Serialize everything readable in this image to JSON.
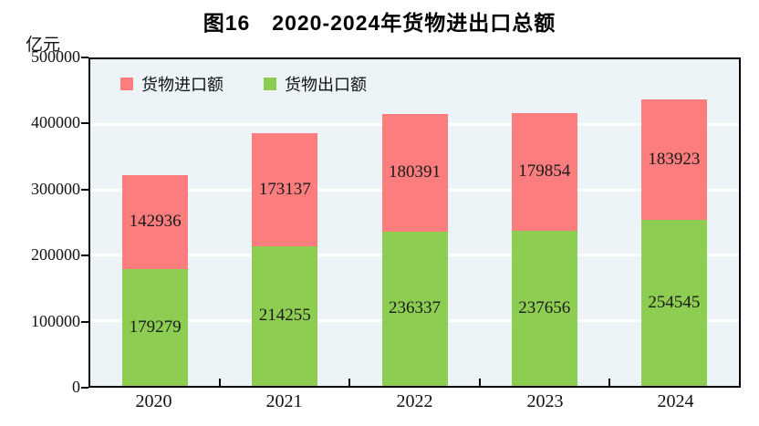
{
  "chart_data": {
    "type": "bar",
    "stacked": true,
    "title": "图16　2020-2024年货物进出口总额",
    "ylabel": "亿元",
    "categories": [
      "2020",
      "2021",
      "2022",
      "2023",
      "2024"
    ],
    "series": [
      {
        "name": "货物进口额",
        "color": "#FB7D7D",
        "position": "top",
        "values": [
          142936,
          173137,
          180391,
          179854,
          183923
        ]
      },
      {
        "name": "货物出口额",
        "color": "#8DCE52",
        "position": "bottom",
        "values": [
          179279,
          214255,
          236337,
          237656,
          254545
        ]
      }
    ],
    "ylim": [
      0,
      500000
    ],
    "yticks": [
      0,
      100000,
      200000,
      300000,
      400000,
      500000
    ],
    "grid": true,
    "legend_position": "top-left",
    "plot_background": "#ECF4F8",
    "grid_color": "#FFFFFF",
    "axis_color": "#000000"
  }
}
